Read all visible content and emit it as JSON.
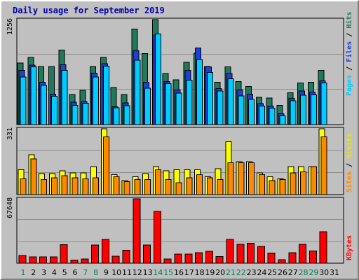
{
  "title": "Daily usage for September 2019",
  "colors": {
    "panel_bg": "#c0c0c0",
    "pages": "#00ccff",
    "files": "#1f3fd8",
    "hits": "#1f7a5a",
    "visits": "#ffff00",
    "sites": "#ff8800",
    "kbytes": "#ff0000",
    "weekend_label": "#00805a",
    "title": "#0000aa"
  },
  "legends": {
    "pages": "Pages",
    "files": "Files",
    "hits": "Hits",
    "visits": "Visits",
    "sites": "Sites",
    "kbytes": "KBytes",
    "separator": " / "
  },
  "chart_data": {
    "type": "bar",
    "title": "Daily usage for September 2019",
    "categories": [
      "1",
      "2",
      "3",
      "4",
      "5",
      "6",
      "7",
      "8",
      "9",
      "10",
      "11",
      "12",
      "13",
      "14",
      "15",
      "16",
      "17",
      "18",
      "19",
      "20",
      "21",
      "22",
      "23",
      "24",
      "25",
      "26",
      "27",
      "28",
      "29",
      "30",
      "31"
    ],
    "weekend_days": [
      "1",
      "7",
      "8",
      "14",
      "15",
      "21",
      "22",
      "28",
      "29"
    ],
    "panels": [
      {
        "name": "hits-files-pages",
        "y_max_label": "1256",
        "ylim": [
          0,
          1256
        ],
        "series": [
          {
            "name": "Hits",
            "values": [
              735,
              805,
              695,
              695,
              890,
              360,
              410,
              695,
              805,
              445,
              360,
              1145,
              850,
              1256,
              610,
              535,
              745,
              855,
              695,
              505,
              690,
              515,
              455,
              325,
              320,
              230,
              380,
              500,
              505,
              650,
              0
            ]
          },
          {
            "name": "Files",
            "values": [
              650,
              710,
              505,
              365,
              715,
              270,
              275,
              615,
              730,
              215,
              260,
              885,
              505,
              1070,
              515,
              415,
              650,
              915,
              690,
              430,
              610,
              415,
              365,
              250,
              220,
              130,
              315,
              400,
              390,
              525,
              0
            ]
          },
          {
            "name": "Pages",
            "values": [
              570,
              690,
              470,
              340,
              650,
              230,
              255,
              570,
              700,
              200,
              225,
              770,
              435,
              1085,
              490,
              375,
              530,
              780,
              625,
              400,
              550,
              345,
              300,
              220,
              195,
              105,
              285,
              350,
              355,
              500,
              0
            ]
          }
        ]
      },
      {
        "name": "visits-sites",
        "y_max_label": "331",
        "ylim": [
          0,
          331
        ],
        "series": [
          {
            "name": "Visits",
            "values": [
              125,
              200,
              105,
              105,
              120,
              110,
              110,
              140,
              331,
              100,
              70,
              90,
              105,
              140,
              120,
              125,
              125,
              125,
              90,
              130,
              265,
              165,
              165,
              110,
              90,
              80,
              140,
              140,
              140,
              331,
              0
            ]
          },
          {
            "name": "Sites",
            "values": [
              80,
              180,
              75,
              85,
              95,
              85,
              80,
              85,
              290,
              90,
              65,
              75,
              75,
              125,
              75,
              60,
              85,
              100,
              85,
              75,
              160,
              160,
              160,
              100,
              70,
              75,
              110,
              115,
              140,
              290,
              0
            ]
          }
        ]
      },
      {
        "name": "kbytes",
        "y_max_label": "67648",
        "ylim": [
          0,
          67648
        ],
        "series": [
          {
            "name": "KBytes",
            "values": [
              8000,
              6500,
              6500,
              6500,
              19500,
              3200,
              4500,
              19000,
              25000,
              7500,
              13500,
              67648,
              19000,
              54500,
              4500,
              9500,
              9500,
              11000,
              12500,
              7000,
              25000,
              20000,
              21000,
              17500,
              10500,
              3500,
              11000,
              20000,
              13000,
              33000,
              0
            ]
          }
        ]
      }
    ]
  }
}
